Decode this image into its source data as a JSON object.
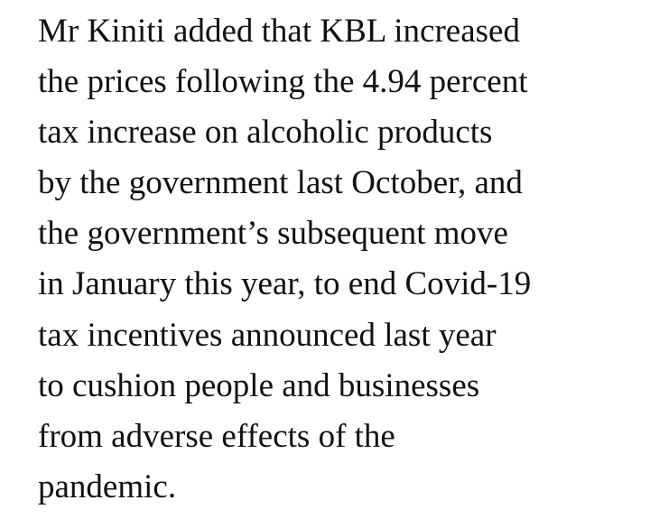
{
  "paragraph": {
    "lines": [
      "Mr Kiniti added that KBL increased",
      "the prices following the 4.94 percent",
      "tax increase on alcoholic products",
      "by the government last October, and",
      "the government’s subsequent move",
      "in January this year, to end Covid-19",
      "tax incentives announced last year",
      "to cushion people and businesses",
      "from adverse effects of the",
      "pandemic."
    ]
  }
}
